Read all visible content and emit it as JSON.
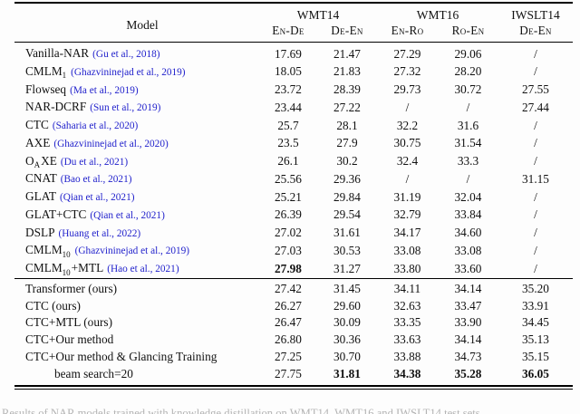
{
  "colors": {
    "citation": "#2222cc",
    "rule": "#000000"
  },
  "table": {
    "header": {
      "model_label": "Model",
      "groups": [
        {
          "label": "WMT14",
          "span": 2
        },
        {
          "label": "WMT16",
          "span": 2
        },
        {
          "label": "IWSLT14",
          "span": 1
        }
      ],
      "sub": [
        "En-De",
        "De-En",
        "En-Ro",
        "Ro-En",
        "De-En"
      ]
    },
    "sections": [
      {
        "rows": [
          {
            "name": [
              {
                "t": "Vanilla-NAR"
              }
            ],
            "cite": "(Gu et al., 2018)",
            "values": [
              "17.69",
              "21.47",
              "27.29",
              "29.06",
              "/"
            ]
          },
          {
            "name": [
              {
                "t": "CMLM"
              },
              {
                "t": "1",
                "sub": true
              }
            ],
            "cite": "(Ghazvininejad et al., 2019)",
            "values": [
              "18.05",
              "21.83",
              "27.32",
              "28.20",
              "/"
            ]
          },
          {
            "name": [
              {
                "t": "Flowseq"
              }
            ],
            "cite": "(Ma et al., 2019)",
            "values": [
              "23.72",
              "28.39",
              "29.73",
              "30.72",
              "27.55"
            ]
          },
          {
            "name": [
              {
                "t": "NAR-DCRF"
              }
            ],
            "cite": "(Sun et al., 2019)",
            "values": [
              "23.44",
              "27.22",
              "/",
              "/",
              "27.44"
            ]
          },
          {
            "name": [
              {
                "t": "CTC"
              }
            ],
            "cite": "(Saharia et al., 2020)",
            "values": [
              "25.7",
              "28.1",
              "32.2",
              "31.6",
              "/"
            ]
          },
          {
            "name": [
              {
                "t": "AXE"
              }
            ],
            "cite": "(Ghazvininejad et al., 2020)",
            "values": [
              "23.5",
              "27.9",
              "30.75",
              "31.54",
              "/"
            ]
          },
          {
            "name": [
              {
                "t": "O"
              },
              {
                "t": "A",
                "sub": true
              },
              {
                "t": "XE"
              }
            ],
            "cite": "(Du et al., 2021)",
            "values": [
              "26.1",
              "30.2",
              "32.4",
              "33.3",
              "/"
            ]
          },
          {
            "name": [
              {
                "t": "CNAT"
              }
            ],
            "cite": "(Bao et al., 2021)",
            "values": [
              "25.56",
              "29.36",
              "/",
              "/",
              "31.15"
            ]
          },
          {
            "name": [
              {
                "t": "GLAT"
              }
            ],
            "cite": "(Qian et al., 2021)",
            "values": [
              "25.21",
              "29.84",
              "31.19",
              "32.04",
              "/"
            ]
          },
          {
            "name": [
              {
                "t": "GLAT+CTC"
              }
            ],
            "cite": "(Qian et al., 2021)",
            "values": [
              "26.39",
              "29.54",
              "32.79",
              "33.84",
              "/"
            ]
          },
          {
            "name": [
              {
                "t": "DSLP"
              }
            ],
            "cite": "(Huang et al., 2022)",
            "values": [
              "27.02",
              "31.61",
              "34.17",
              "34.60",
              "/"
            ]
          },
          {
            "name": [
              {
                "t": "CMLM"
              },
              {
                "t": "10",
                "sub": true
              }
            ],
            "cite": "(Ghazvininejad et al., 2019)",
            "values": [
              "27.03",
              "30.53",
              "33.08",
              "33.08",
              "/"
            ]
          },
          {
            "name": [
              {
                "t": "CMLM"
              },
              {
                "t": "10",
                "sub": true
              },
              {
                "t": "+MTL"
              }
            ],
            "cite": "(Hao et al., 2021)",
            "values": [
              "27.98",
              "31.27",
              "33.80",
              "33.60",
              "/"
            ],
            "bold": [
              0
            ]
          }
        ]
      },
      {
        "rows": [
          {
            "name": [
              {
                "t": "Transformer (ours)"
              }
            ],
            "values": [
              "27.42",
              "31.45",
              "34.11",
              "34.14",
              "35.20"
            ]
          },
          {
            "name": [
              {
                "t": "CTC (ours)"
              }
            ],
            "values": [
              "26.27",
              "29.60",
              "32.63",
              "33.47",
              "33.91"
            ]
          },
          {
            "name": [
              {
                "t": "CTC+MTL (ours)"
              }
            ],
            "values": [
              "26.47",
              "30.09",
              "33.35",
              "33.90",
              "34.45"
            ]
          },
          {
            "name": [
              {
                "t": "CTC+Our method"
              }
            ],
            "values": [
              "26.80",
              "30.36",
              "33.63",
              "34.14",
              "35.13"
            ]
          },
          {
            "name": [
              {
                "t": "CTC+Our method & Glancing Training"
              }
            ],
            "values": [
              "27.25",
              "30.70",
              "33.88",
              "34.73",
              "35.15"
            ]
          },
          {
            "name": [
              {
                "t": "beam search=20"
              }
            ],
            "indent": true,
            "values": [
              "27.75",
              "31.81",
              "34.38",
              "35.28",
              "36.05"
            ],
            "bold": [
              1,
              2,
              3,
              4
            ]
          }
        ]
      }
    ]
  },
  "caption": {
    "text": "Results of NAR models trained with knowledge distillation on WMT14, WMT16 and IWSLT14 test sets."
  }
}
